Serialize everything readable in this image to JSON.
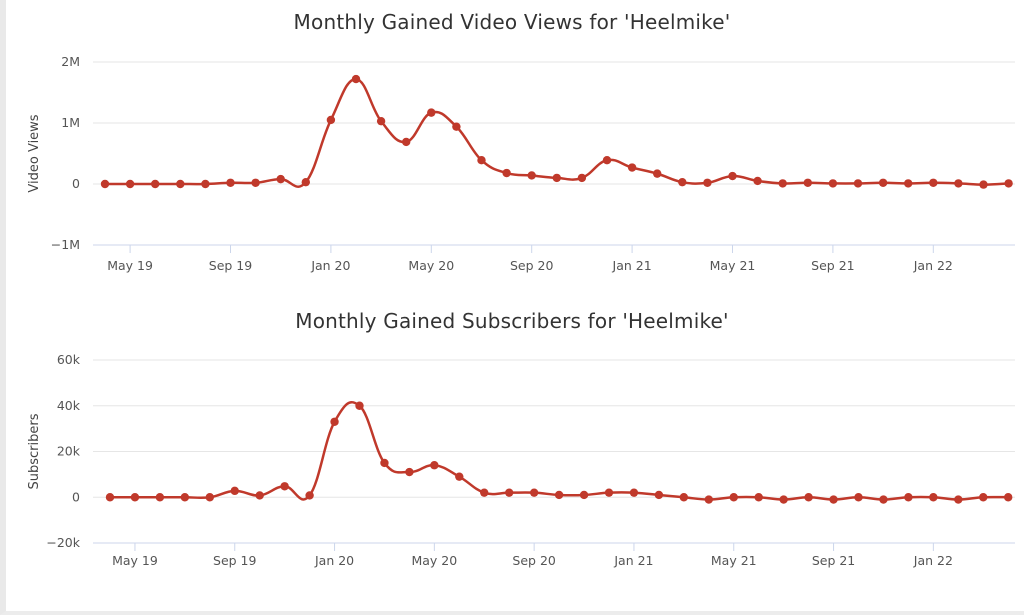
{
  "chart_data": [
    {
      "type": "line",
      "title": "Monthly Gained Video Views for 'Heelmike'",
      "ylabel": "Video Views",
      "xlabel": "",
      "grid": true,
      "legend": "none",
      "color": "#c0392b",
      "ylim": [
        -1000000,
        2000000
      ],
      "yticks": [
        {
          "value": 2000000,
          "label": "2M"
        },
        {
          "value": 1000000,
          "label": "1M"
        },
        {
          "value": 0,
          "label": "0"
        },
        {
          "value": -1000000,
          "label": "−1M"
        }
      ],
      "xticks": [
        {
          "index": 1,
          "label": "May 19"
        },
        {
          "index": 5,
          "label": "Sep 19"
        },
        {
          "index": 9,
          "label": "Jan 20"
        },
        {
          "index": 13,
          "label": "May 20"
        },
        {
          "index": 17,
          "label": "Sep 20"
        },
        {
          "index": 21,
          "label": "Jan 21"
        },
        {
          "index": 25,
          "label": "May 21"
        },
        {
          "index": 29,
          "label": "Sep 21"
        },
        {
          "index": 33,
          "label": "Jan 22"
        }
      ],
      "x": [
        "2019-04",
        "2019-05",
        "2019-06",
        "2019-07",
        "2019-08",
        "2019-09",
        "2019-10",
        "2019-11",
        "2019-12",
        "2020-01",
        "2020-02",
        "2020-03",
        "2020-04",
        "2020-05",
        "2020-06",
        "2020-07",
        "2020-08",
        "2020-09",
        "2020-10",
        "2020-11",
        "2020-12",
        "2021-01",
        "2021-02",
        "2021-03",
        "2021-04",
        "2021-05",
        "2021-06",
        "2021-07",
        "2021-08",
        "2021-09",
        "2021-10",
        "2021-11",
        "2021-12",
        "2022-01",
        "2022-02",
        "2022-03",
        "2022-04"
      ],
      "series": [
        {
          "values": [
            0,
            0,
            0,
            0,
            0,
            20000,
            20000,
            80000,
            30000,
            1050000,
            1720000,
            1030000,
            690000,
            1170000,
            940000,
            390000,
            180000,
            140000,
            100000,
            100000,
            390000,
            270000,
            170000,
            30000,
            20000,
            130000,
            50000,
            10000,
            20000,
            10000,
            10000,
            20000,
            10000,
            20000,
            10000,
            -10000,
            10000
          ]
        }
      ]
    },
    {
      "type": "line",
      "title": "Monthly Gained Subscribers for 'Heelmike'",
      "ylabel": "Subscribers",
      "xlabel": "",
      "grid": true,
      "legend": "none",
      "color": "#c0392b",
      "ylim": [
        -20000,
        60000
      ],
      "yticks": [
        {
          "value": 60000,
          "label": "60k"
        },
        {
          "value": 40000,
          "label": "40k"
        },
        {
          "value": 20000,
          "label": "20k"
        },
        {
          "value": 0,
          "label": "0"
        },
        {
          "value": -20000,
          "label": "−20k"
        }
      ],
      "xticks": [
        {
          "index": 1,
          "label": "May 19"
        },
        {
          "index": 5,
          "label": "Sep 19"
        },
        {
          "index": 9,
          "label": "Jan 20"
        },
        {
          "index": 13,
          "label": "May 20"
        },
        {
          "index": 17,
          "label": "Sep 20"
        },
        {
          "index": 21,
          "label": "Jan 21"
        },
        {
          "index": 25,
          "label": "May 21"
        },
        {
          "index": 29,
          "label": "Sep 21"
        },
        {
          "index": 33,
          "label": "Jan 22"
        }
      ],
      "x": [
        "2019-04",
        "2019-05",
        "2019-06",
        "2019-07",
        "2019-08",
        "2019-09",
        "2019-10",
        "2019-11",
        "2019-12",
        "2020-01",
        "2020-02",
        "2020-03",
        "2020-04",
        "2020-05",
        "2020-06",
        "2020-07",
        "2020-08",
        "2020-09",
        "2020-10",
        "2020-11",
        "2020-12",
        "2021-01",
        "2021-02",
        "2021-03",
        "2021-04",
        "2021-05",
        "2021-06",
        "2021-07",
        "2021-08",
        "2021-09",
        "2021-10",
        "2021-11",
        "2021-12",
        "2022-01",
        "2022-02",
        "2022-03",
        "2022-04"
      ],
      "series": [
        {
          "values": [
            0,
            0,
            0,
            0,
            0,
            2800,
            800,
            4800,
            800,
            33000,
            40000,
            15000,
            11000,
            14000,
            9000,
            2000,
            2000,
            2000,
            1000,
            1000,
            2000,
            2000,
            1000,
            0,
            -1000,
            0,
            0,
            -1000,
            0,
            -1000,
            0,
            -1000,
            0,
            0,
            -1000,
            0,
            0
          ]
        }
      ]
    }
  ]
}
